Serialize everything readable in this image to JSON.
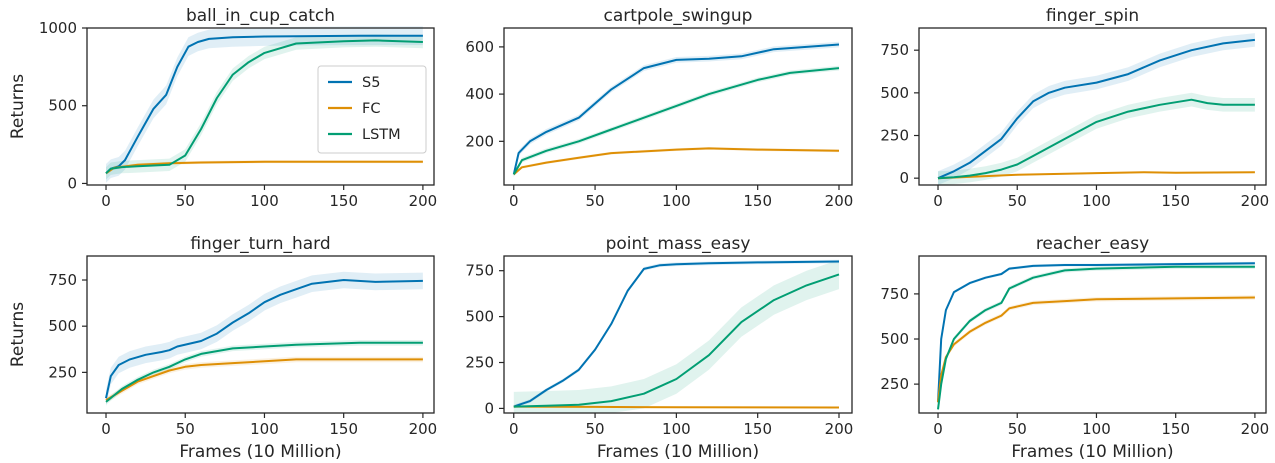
{
  "figure": {
    "xlabel": "Frames (10 Million)",
    "ylabel": "Returns",
    "legend": {
      "placement": "right (first panel)",
      "entries": [
        "S5",
        "FC",
        "LSTM"
      ]
    },
    "colors": {
      "S5": "#0173b2",
      "FC": "#de8f05",
      "LSTM": "#029e73"
    }
  },
  "chart_data": [
    {
      "type": "line",
      "title": "ball_in_cup_catch",
      "xlim": [
        -12,
        207
      ],
      "ylim": [
        -10,
        1000
      ],
      "xticks": [
        0,
        50,
        100,
        150,
        200
      ],
      "yticks": [
        0,
        500,
        1000
      ],
      "xlabel": "",
      "ylabel": "Returns",
      "legend": true,
      "series": [
        {
          "name": "S5",
          "band": 60,
          "x": [
            0,
            3,
            8,
            12,
            20,
            30,
            38,
            45,
            52,
            58,
            65,
            80,
            100,
            130,
            160,
            200
          ],
          "y": [
            65,
            95,
            110,
            150,
            300,
            480,
            570,
            750,
            880,
            910,
            930,
            940,
            945,
            948,
            950,
            950
          ]
        },
        {
          "name": "FC",
          "band": 10,
          "x": [
            0,
            5,
            20,
            40,
            60,
            100,
            150,
            200
          ],
          "y": [
            65,
            100,
            120,
            130,
            135,
            140,
            140,
            140
          ]
        },
        {
          "name": "LSTM",
          "band": 40,
          "x": [
            0,
            3,
            10,
            20,
            40,
            50,
            60,
            70,
            80,
            90,
            100,
            120,
            150,
            170,
            200
          ],
          "y": [
            65,
            95,
            105,
            110,
            120,
            180,
            350,
            550,
            700,
            780,
            840,
            900,
            915,
            920,
            910
          ]
        }
      ]
    },
    {
      "type": "line",
      "title": "cartpole_swingup",
      "xlim": [
        -6,
        208
      ],
      "ylim": [
        15,
        680
      ],
      "xticks": [
        0,
        50,
        100,
        150,
        200
      ],
      "yticks": [
        200,
        400,
        600
      ],
      "xlabel": "",
      "ylabel": "",
      "legend": false,
      "series": [
        {
          "name": "S5",
          "band": 12,
          "x": [
            0,
            3,
            10,
            20,
            30,
            40,
            45,
            60,
            80,
            100,
            120,
            140,
            160,
            180,
            200
          ],
          "y": [
            60,
            150,
            200,
            240,
            270,
            300,
            330,
            420,
            510,
            545,
            550,
            560,
            590,
            600,
            610
          ]
        },
        {
          "name": "FC",
          "band": 6,
          "x": [
            0,
            5,
            20,
            40,
            60,
            100,
            120,
            150,
            200
          ],
          "y": [
            60,
            90,
            110,
            130,
            150,
            165,
            170,
            165,
            160
          ]
        },
        {
          "name": "LSTM",
          "band": 10,
          "x": [
            0,
            5,
            20,
            40,
            60,
            80,
            100,
            120,
            150,
            170,
            200
          ],
          "y": [
            60,
            120,
            160,
            200,
            250,
            300,
            350,
            400,
            460,
            490,
            510
          ]
        }
      ]
    },
    {
      "type": "line",
      "title": "finger_spin",
      "xlim": [
        -12,
        207
      ],
      "ylim": [
        -40,
        880
      ],
      "xticks": [
        0,
        50,
        100,
        150,
        200
      ],
      "yticks": [
        0,
        250,
        500,
        750
      ],
      "xlabel": "",
      "ylabel": "",
      "legend": false,
      "series": [
        {
          "name": "S5",
          "band": 40,
          "x": [
            0,
            10,
            20,
            30,
            40,
            50,
            60,
            70,
            80,
            100,
            120,
            140,
            160,
            180,
            200
          ],
          "y": [
            0,
            40,
            90,
            160,
            230,
            350,
            450,
            500,
            530,
            560,
            610,
            690,
            750,
            790,
            810
          ]
        },
        {
          "name": "FC",
          "band": 4,
          "x": [
            0,
            50,
            100,
            130,
            150,
            200
          ],
          "y": [
            0,
            20,
            30,
            35,
            32,
            35
          ]
        },
        {
          "name": "LSTM",
          "band": 40,
          "x": [
            0,
            10,
            20,
            30,
            40,
            50,
            60,
            80,
            100,
            120,
            140,
            160,
            170,
            180,
            200
          ],
          "y": [
            0,
            5,
            15,
            30,
            50,
            80,
            130,
            230,
            330,
            390,
            430,
            460,
            440,
            430,
            430
          ]
        }
      ]
    },
    {
      "type": "line",
      "title": "finger_turn_hard",
      "xlim": [
        -12,
        207
      ],
      "ylim": [
        30,
        880
      ],
      "xticks": [
        0,
        50,
        100,
        150,
        200
      ],
      "yticks": [
        250,
        500,
        750
      ],
      "xlabel": "Frames (10 Million)",
      "ylabel": "Returns",
      "legend": false,
      "series": [
        {
          "name": "S5",
          "band": 45,
          "x": [
            0,
            3,
            8,
            15,
            25,
            35,
            40,
            45,
            60,
            70,
            80,
            90,
            100,
            110,
            120,
            130,
            150,
            170,
            200
          ],
          "y": [
            110,
            230,
            290,
            320,
            345,
            360,
            370,
            390,
            420,
            460,
            520,
            570,
            630,
            670,
            700,
            730,
            750,
            740,
            745
          ]
        },
        {
          "name": "FC",
          "band": 15,
          "x": [
            0,
            10,
            20,
            30,
            40,
            50,
            60,
            80,
            100,
            120,
            140,
            160,
            180,
            200
          ],
          "y": [
            100,
            150,
            200,
            230,
            260,
            280,
            290,
            300,
            310,
            320,
            320,
            320,
            320,
            320
          ]
        },
        {
          "name": "LSTM",
          "band": 15,
          "x": [
            0,
            10,
            20,
            30,
            40,
            50,
            60,
            80,
            100,
            120,
            140,
            160,
            180,
            200
          ],
          "y": [
            90,
            160,
            210,
            250,
            280,
            320,
            350,
            380,
            390,
            400,
            405,
            410,
            410,
            410
          ]
        }
      ]
    },
    {
      "type": "line",
      "title": "point_mass_easy",
      "xlim": [
        -6,
        208
      ],
      "ylim": [
        -25,
        830
      ],
      "xticks": [
        0,
        50,
        100,
        150,
        200
      ],
      "yticks": [
        0,
        250,
        500,
        750
      ],
      "xlabel": "Frames (10 Million)",
      "ylabel": "",
      "legend": false,
      "series": [
        {
          "name": "S5",
          "band": 10,
          "x": [
            0,
            10,
            20,
            30,
            40,
            50,
            60,
            70,
            80,
            90,
            100,
            120,
            150,
            200
          ],
          "y": [
            10,
            40,
            100,
            150,
            210,
            320,
            460,
            640,
            760,
            780,
            785,
            790,
            795,
            800
          ]
        },
        {
          "name": "FC",
          "band": 3,
          "x": [
            0,
            50,
            100,
            200
          ],
          "y": [
            10,
            8,
            6,
            5
          ]
        },
        {
          "name": "LSTM",
          "band": 80,
          "x": [
            0,
            20,
            40,
            60,
            80,
            100,
            120,
            140,
            160,
            180,
            200
          ],
          "y": [
            10,
            15,
            20,
            40,
            80,
            160,
            290,
            470,
            590,
            670,
            730
          ]
        }
      ]
    },
    {
      "type": "line",
      "title": "reacher_easy",
      "xlim": [
        -12,
        207
      ],
      "ylim": [
        90,
        960
      ],
      "xticks": [
        0,
        50,
        100,
        150,
        200
      ],
      "yticks": [
        250,
        500,
        750
      ],
      "xlabel": "Frames (10 Million)",
      "ylabel": "",
      "legend": false,
      "series": [
        {
          "name": "S5",
          "band": 8,
          "x": [
            0,
            2,
            5,
            10,
            20,
            30,
            40,
            45,
            60,
            80,
            100,
            150,
            200
          ],
          "y": [
            150,
            500,
            660,
            760,
            810,
            840,
            860,
            890,
            905,
            910,
            910,
            915,
            920
          ]
        },
        {
          "name": "FC",
          "band": 12,
          "x": [
            0,
            2,
            5,
            10,
            20,
            30,
            40,
            45,
            60,
            80,
            100,
            150,
            200
          ],
          "y": [
            150,
            300,
            400,
            470,
            540,
            590,
            630,
            670,
            700,
            710,
            720,
            725,
            730
          ]
        },
        {
          "name": "LSTM",
          "band": 12,
          "x": [
            0,
            2,
            5,
            10,
            20,
            30,
            40,
            45,
            60,
            80,
            100,
            150,
            200
          ],
          "y": [
            110,
            250,
            390,
            500,
            600,
            660,
            700,
            780,
            840,
            880,
            890,
            900,
            900
          ]
        }
      ]
    }
  ]
}
